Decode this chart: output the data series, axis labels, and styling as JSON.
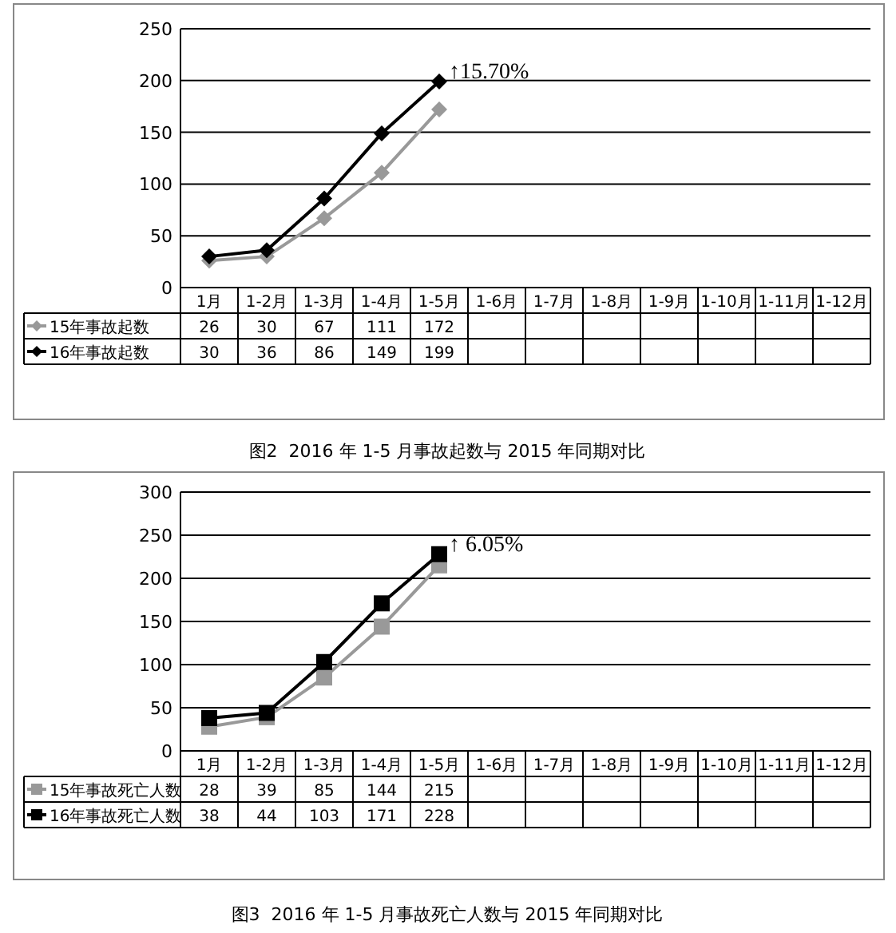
{
  "chart_data": [
    {
      "type": "line",
      "title": "图2  2016 年 1-5 月事故起数与 2015 年同期对比",
      "categories": [
        "1月",
        "1-2月",
        "1-3月",
        "1-4月",
        "1-5月",
        "1-6月",
        "1-7月",
        "1-8月",
        "1-9月",
        "1-10月",
        "1-11月",
        "1-12月"
      ],
      "series": [
        {
          "name": "15年事故起数",
          "color": "#999999",
          "values": [
            26,
            30,
            67,
            111,
            172,
            null,
            null,
            null,
            null,
            null,
            null,
            null
          ]
        },
        {
          "name": "16年事故起数",
          "color": "#000000",
          "values": [
            30,
            36,
            86,
            149,
            199,
            null,
            null,
            null,
            null,
            null,
            null,
            null
          ]
        }
      ],
      "ylim": [
        0,
        250
      ],
      "yticks": [
        0,
        50,
        100,
        150,
        200,
        250
      ],
      "grid": "y",
      "legend": "bottom",
      "marker": "diamond",
      "data_labels": true,
      "annotations": [
        {
          "text": "↑15.70%",
          "x": "1-5月",
          "y": 199
        }
      ]
    },
    {
      "type": "line",
      "title": "图3  2016 年 1-5 月事故死亡人数与 2015 年同期对比",
      "categories": [
        "1月",
        "1-2月",
        "1-3月",
        "1-4月",
        "1-5月",
        "1-6月",
        "1-7月",
        "1-8月",
        "1-9月",
        "1-10月",
        "1-11月",
        "1-12月"
      ],
      "series": [
        {
          "name": "15年事故死亡人数",
          "color": "#999999",
          "values": [
            28,
            39,
            85,
            144,
            215,
            null,
            null,
            null,
            null,
            null,
            null,
            null
          ]
        },
        {
          "name": "16年事故死亡人数",
          "color": "#000000",
          "values": [
            38,
            44,
            103,
            171,
            228,
            null,
            null,
            null,
            null,
            null,
            null,
            null
          ]
        }
      ],
      "ylim": [
        0,
        300
      ],
      "yticks": [
        0,
        50,
        100,
        150,
        200,
        250,
        300
      ],
      "grid": "y",
      "legend": "bottom",
      "marker": "square",
      "data_labels": true,
      "annotations": [
        {
          "text": "↑ 6.05%",
          "x": "1-5月",
          "y": 228
        }
      ]
    }
  ]
}
